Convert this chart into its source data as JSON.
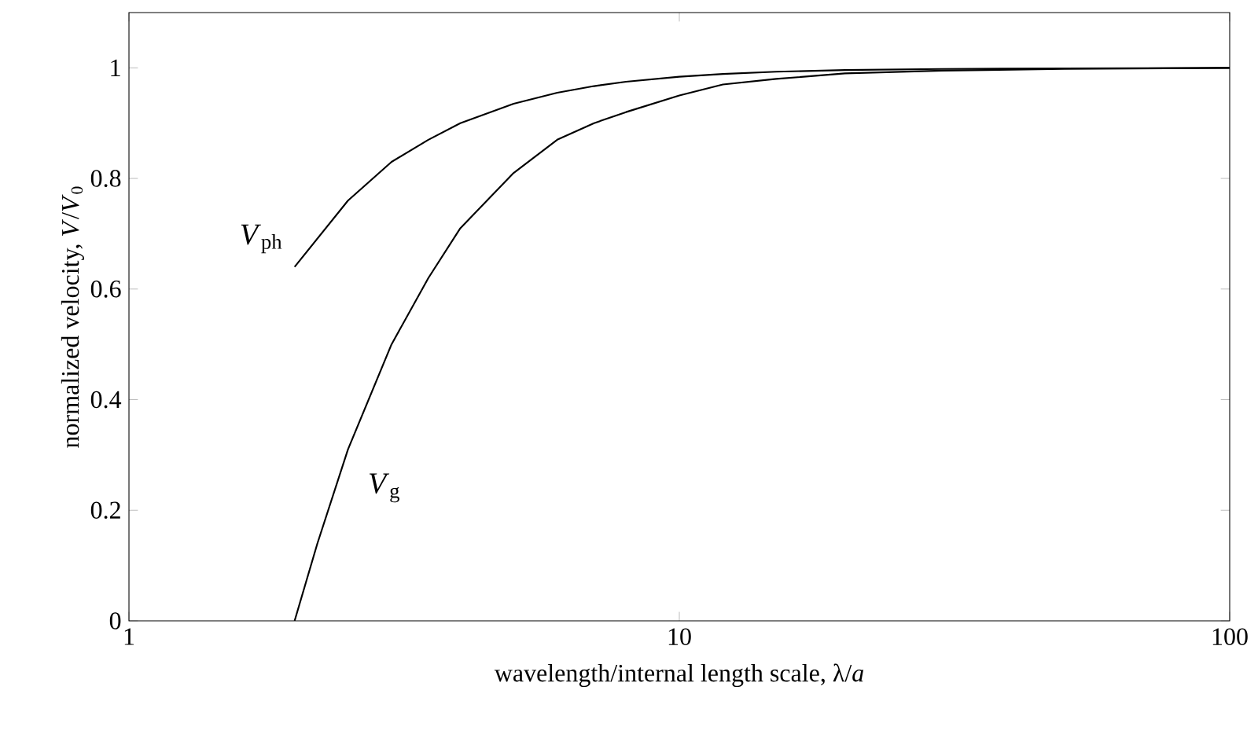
{
  "chart_data": {
    "type": "line",
    "xlabel": "wavelength/internal length scale, λ/*a*",
    "ylabel": "normalized velocity, *V*/*V*$_{0}$",
    "log": "x",
    "xlim": [
      1,
      100
    ],
    "ylim": [
      0,
      1.1
    ],
    "xticks": [
      1,
      10,
      100
    ],
    "yticks": [
      0,
      0.2,
      0.4,
      0.6,
      0.8,
      1
    ],
    "series": [
      {
        "name": "*V*$_{ph}$",
        "color": "#000000",
        "x": [
          2,
          2.5,
          3,
          3.5,
          4,
          5,
          6,
          7,
          8,
          10,
          12,
          15,
          20,
          30,
          50,
          100
        ],
        "values": [
          0.64,
          0.76,
          0.83,
          0.87,
          0.9,
          0.935,
          0.955,
          0.967,
          0.975,
          0.984,
          0.989,
          0.993,
          0.996,
          0.998,
          0.999,
          1.0
        ]
      },
      {
        "name": "*V*$_{g}$",
        "color": "#000000",
        "x": [
          2,
          2.2,
          2.5,
          3,
          3.5,
          4,
          5,
          6,
          7,
          8,
          10,
          12,
          15,
          20,
          30,
          50,
          100
        ],
        "values": [
          0,
          0.14,
          0.31,
          0.5,
          0.62,
          0.71,
          0.81,
          0.87,
          0.9,
          0.92,
          0.95,
          0.97,
          0.98,
          0.99,
          0.995,
          0.998,
          1.0
        ]
      }
    ]
  }
}
